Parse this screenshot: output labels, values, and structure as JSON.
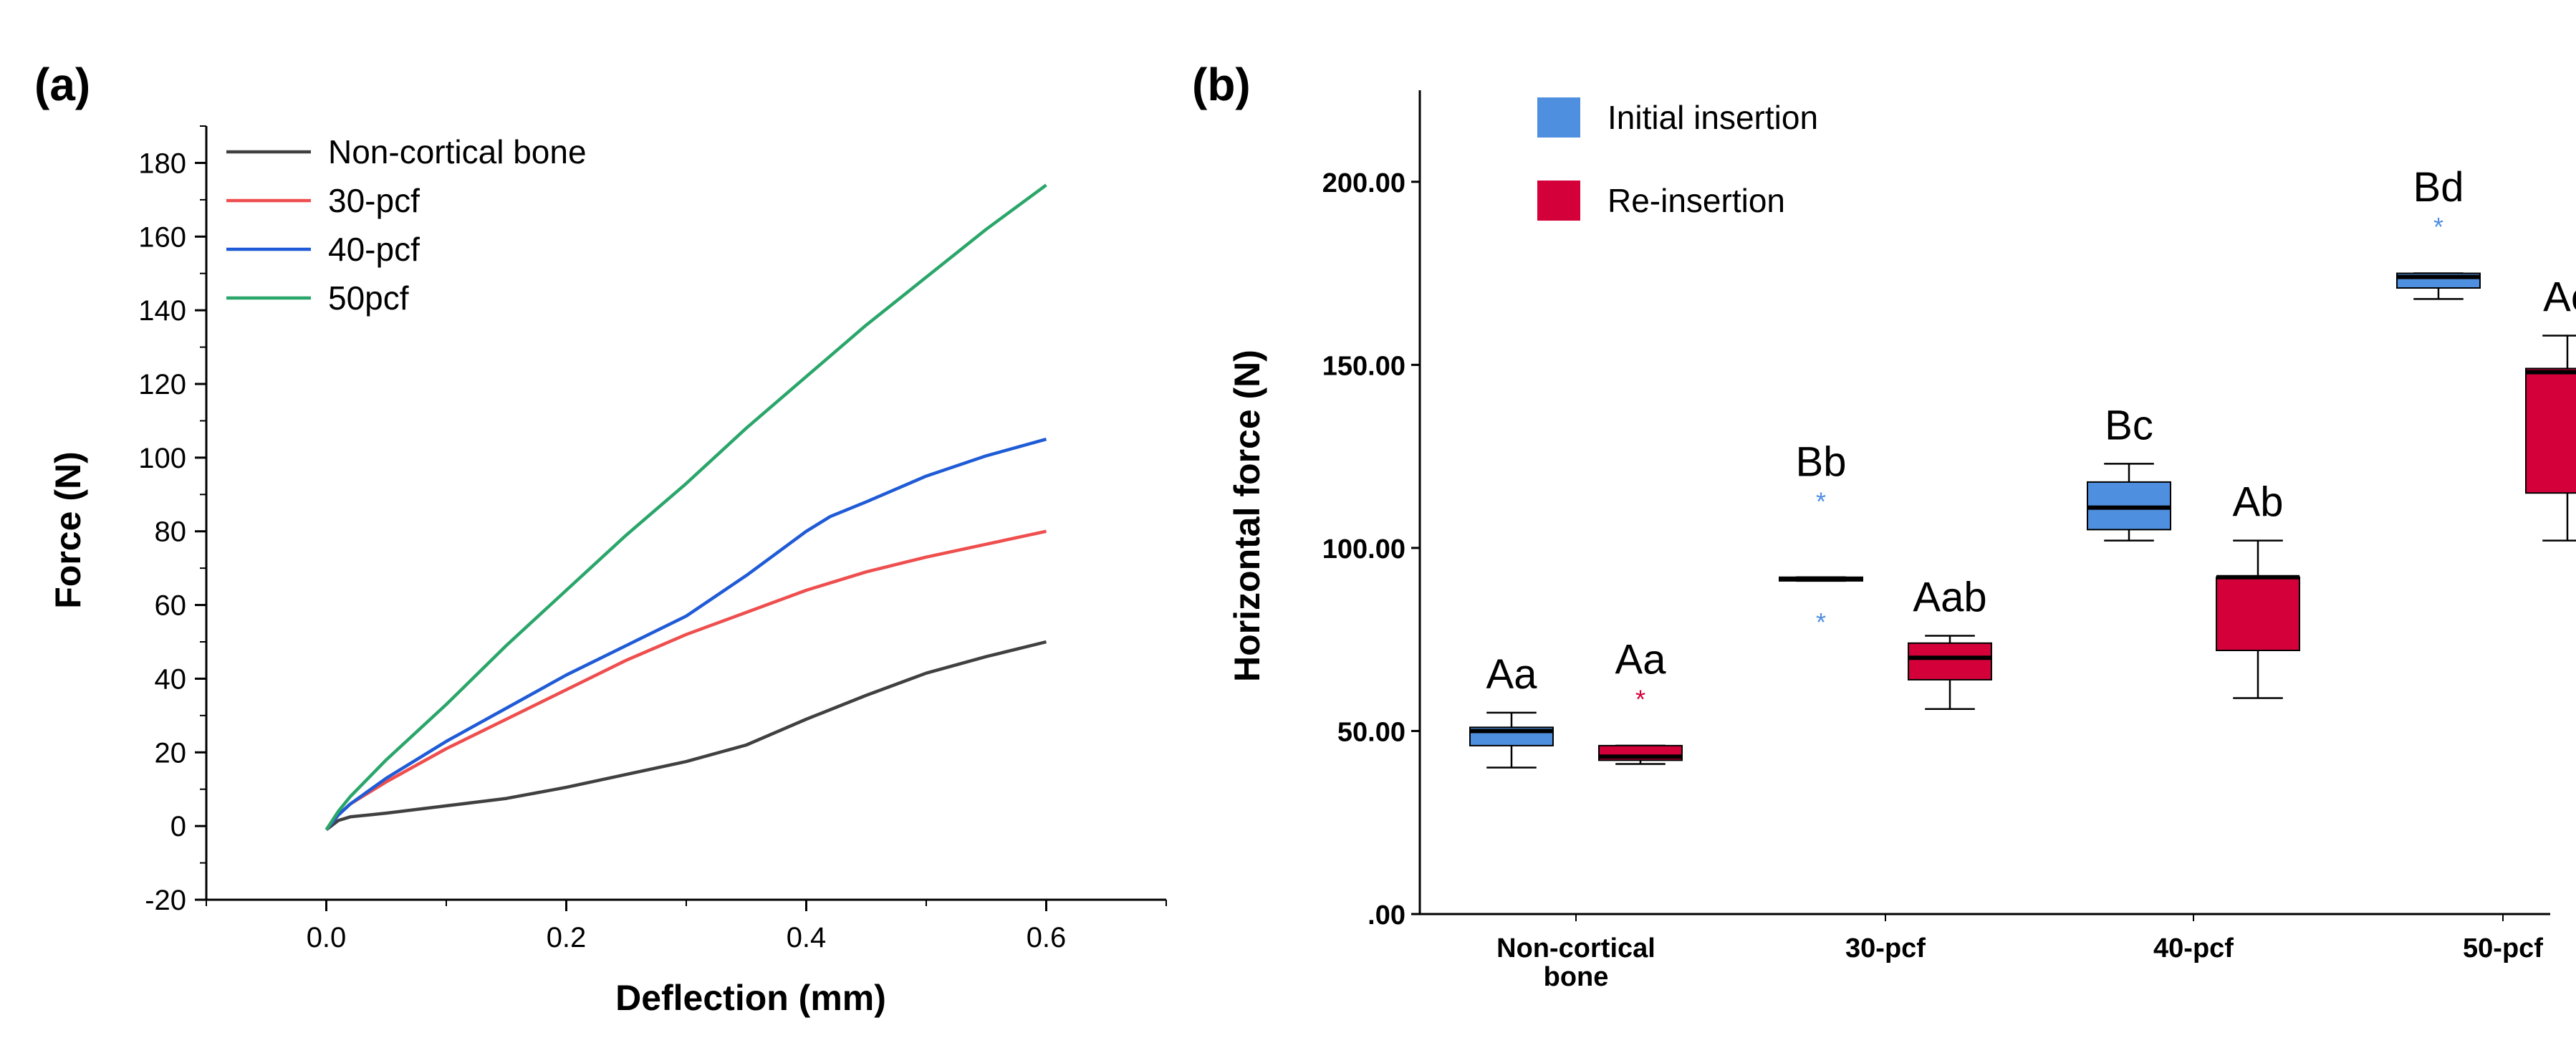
{
  "chart_data": [
    {
      "panel": "(a)",
      "type": "line",
      "title": "",
      "xlabel": "Deflection (mm)",
      "ylabel": "Force (N)",
      "xlim": [
        -0.1,
        0.7
      ],
      "ylim": [
        -20,
        190
      ],
      "xticks": [
        0.0,
        0.2,
        0.4,
        0.6
      ],
      "xtick_labels": [
        "0.0",
        "0.2",
        "0.4",
        "0.6"
      ],
      "yticks": [
        -20,
        0,
        20,
        40,
        60,
        80,
        100,
        120,
        140,
        160,
        180
      ],
      "ytick_labels": [
        "-20",
        "0",
        "20",
        "40",
        "60",
        "80",
        "100",
        "120",
        "140",
        "160",
        "180"
      ],
      "grid": false,
      "legend_position": "top-left",
      "series": [
        {
          "name": "Non-cortical bone",
          "color": "#404040",
          "x": [
            0,
            0.01,
            0.02,
            0.05,
            0.1,
            0.15,
            0.2,
            0.25,
            0.3,
            0.35,
            0.4,
            0.45,
            0.5,
            0.55,
            0.6
          ],
          "y": [
            -1,
            1.5,
            2.5,
            3.5,
            5.5,
            7.5,
            10.5,
            14,
            17.5,
            22,
            29,
            35.5,
            41.5,
            46,
            50
          ]
        },
        {
          "name": "30-pcf",
          "color": "#ef4e4e",
          "x": [
            0,
            0.01,
            0.02,
            0.05,
            0.1,
            0.15,
            0.2,
            0.25,
            0.3,
            0.35,
            0.4,
            0.45,
            0.5,
            0.55,
            0.6
          ],
          "y": [
            -1,
            3,
            6,
            12,
            21,
            29,
            37,
            45,
            52,
            58,
            64,
            69,
            73,
            76.5,
            80
          ]
        },
        {
          "name": "40-pcf",
          "color": "#1f5bd6",
          "x": [
            0,
            0.01,
            0.02,
            0.05,
            0.1,
            0.15,
            0.2,
            0.25,
            0.3,
            0.35,
            0.4,
            0.42,
            0.45,
            0.5,
            0.55,
            0.6
          ],
          "y": [
            -1,
            3,
            6,
            13,
            23,
            32,
            41,
            49,
            57,
            68,
            80,
            84,
            88,
            95,
            100.5,
            105
          ]
        },
        {
          "name": "50pcf",
          "color": "#2aa66a",
          "x": [
            0,
            0.01,
            0.02,
            0.05,
            0.1,
            0.15,
            0.2,
            0.25,
            0.3,
            0.35,
            0.4,
            0.45,
            0.5,
            0.55,
            0.6
          ],
          "y": [
            -1,
            4,
            8,
            18,
            33,
            49,
            64,
            79,
            93,
            108,
            122,
            136,
            149,
            162,
            174
          ]
        }
      ]
    },
    {
      "panel": "(b)",
      "type": "box",
      "title": "",
      "xlabel": "",
      "ylabel": "Horizontal force (N)",
      "ylim": [
        0,
        225
      ],
      "yticks": [
        0,
        50,
        100,
        150,
        200
      ],
      "ytick_labels": [
        ".00",
        "50.00",
        "100.00",
        "150.00",
        "200.00"
      ],
      "categories": [
        {
          "line1": "Non-cortical",
          "line2": "bone"
        },
        {
          "line1": "30-pcf",
          "line2": ""
        },
        {
          "line1": "40-pcf",
          "line2": ""
        },
        {
          "line1": "50-pcf",
          "line2": ""
        }
      ],
      "grid": false,
      "legend_position": "top-left",
      "series": [
        {
          "name": "Initial insertion",
          "color": "#4f8fe0",
          "boxes": [
            {
              "min": 40,
              "q1": 46,
              "median": 50,
              "q3": 51,
              "max": 55,
              "outliers": [],
              "letters": "Aa"
            },
            {
              "min": 91,
              "q1": 91,
              "median": 91.5,
              "q3": 92,
              "max": 92,
              "outliers": [
                113,
                80
              ],
              "letters": "Bb"
            },
            {
              "min": 102,
              "q1": 105,
              "median": 111,
              "q3": 118,
              "max": 123,
              "outliers": [],
              "letters": "Bc"
            },
            {
              "min": 168,
              "q1": 171,
              "median": 174,
              "q3": 175,
              "max": 175,
              "outliers": [
                188
              ],
              "letters": "Bd"
            }
          ]
        },
        {
          "name": "Re-insertion",
          "color": "#d4003a",
          "boxes": [
            {
              "min": 41,
              "q1": 42,
              "median": 43,
              "q3": 46,
              "max": 46,
              "outliers": [
                59
              ],
              "letters": "Aa"
            },
            {
              "min": 56,
              "q1": 64,
              "median": 70,
              "q3": 74,
              "max": 76,
              "outliers": [],
              "letters": "Aab"
            },
            {
              "min": 59,
              "q1": 72,
              "median": 92,
              "q3": 92,
              "max": 102,
              "outliers": [],
              "letters": "Ab"
            },
            {
              "min": 102,
              "q1": 115,
              "median": 148,
              "q3": 149,
              "max": 158,
              "outliers": [],
              "letters": "Ac"
            }
          ]
        }
      ]
    }
  ]
}
